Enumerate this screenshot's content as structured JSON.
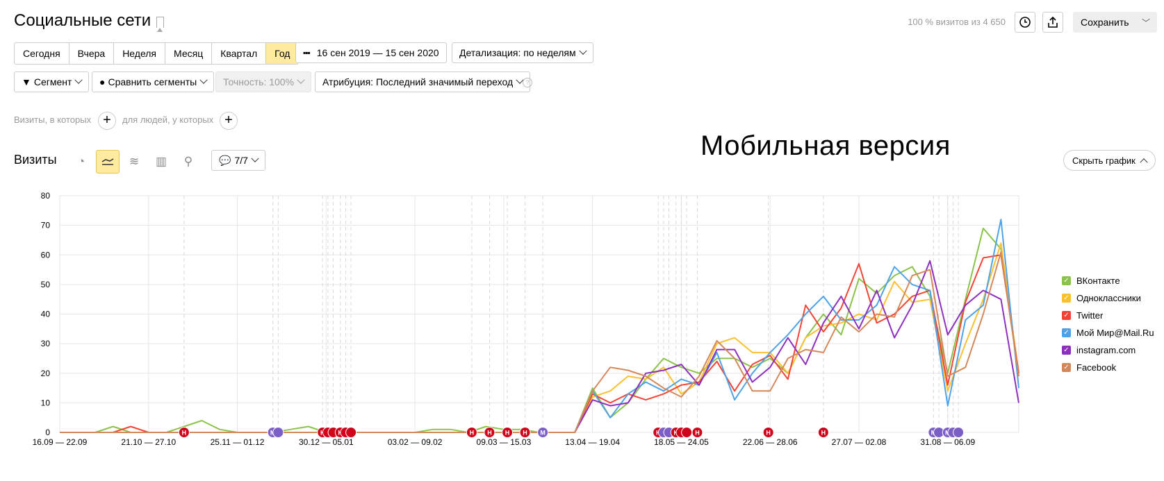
{
  "header": {
    "title": "Социальные сети",
    "visits_info": "100 % визитов из 4 650",
    "save_label": "Сохранить"
  },
  "period": {
    "buttons": [
      "Сегодня",
      "Вчера",
      "Неделя",
      "Месяц",
      "Квартал",
      "Год"
    ],
    "active": "Год",
    "date_range": "16 сен 2019 — 15 сен 2020",
    "detail": "Детализация: по неделям"
  },
  "filters": {
    "segment": "Сегмент",
    "compare": "Сравнить сегменты",
    "accuracy": "Точность: 100%",
    "attribution": "Атрибуция: Последний значимый переход",
    "help": "?"
  },
  "conditions": {
    "visits_label": "Визиты, в которых",
    "people_label": "для людей, у которых"
  },
  "chart_header": {
    "label": "Визиты",
    "notes": "7/7",
    "overlay_text": "Мобильная  версия",
    "hide_label": "Скрыть график"
  },
  "colors": {
    "accent_yellow": "#ffeba0",
    "marker_red": "#d0021b",
    "marker_purple": "#7b5fc7"
  },
  "chart_data": {
    "type": "line",
    "ylim": [
      0,
      80
    ],
    "yticks": [
      0,
      10,
      20,
      30,
      40,
      50,
      60,
      70,
      80
    ],
    "grid": true,
    "legend_position": "right",
    "x_tick_labels": [
      {
        "index": 0,
        "label": "16.09 — 22.09"
      },
      {
        "index": 5,
        "label": "21.10 — 27.10"
      },
      {
        "index": 10,
        "label": "25.11 — 01.12"
      },
      {
        "index": 15,
        "label": "30.12 — 05.01"
      },
      {
        "index": 20,
        "label": "03.02 — 09.02"
      },
      {
        "index": 25,
        "label": "09.03 — 15.03"
      },
      {
        "index": 30,
        "label": "13.04 — 19.04"
      },
      {
        "index": 35,
        "label": "18.05 — 24.05"
      },
      {
        "index": 40,
        "label": "22.06 — 28.06"
      },
      {
        "index": 45,
        "label": "27.07 — 02.08"
      },
      {
        "index": 50,
        "label": "31.08 — 06.09"
      }
    ],
    "series": [
      {
        "name": "ВКонтакте",
        "color": "#8bc34a",
        "values": [
          0,
          0,
          0,
          2,
          0,
          0,
          0,
          2,
          4,
          1,
          0,
          0,
          0,
          1,
          2,
          0,
          0,
          0,
          0,
          0,
          0,
          1,
          1,
          0,
          2,
          1,
          1,
          0,
          0,
          0,
          15,
          5,
          10,
          18,
          25,
          22,
          20,
          25,
          25,
          22,
          25,
          20,
          32,
          40,
          33,
          52,
          47,
          53,
          56,
          46,
          20,
          45,
          69,
          62,
          20
        ]
      },
      {
        "name": "Одноклассники",
        "color": "#fbc02d",
        "values": [
          0,
          0,
          0,
          0,
          0,
          0,
          0,
          0,
          0,
          0,
          0,
          0,
          0,
          0,
          0,
          0,
          0,
          0,
          0,
          0,
          0,
          0,
          0,
          0,
          0,
          0,
          0,
          0,
          0,
          0,
          12,
          14,
          19,
          18,
          22,
          13,
          17,
          30,
          32,
          27,
          27,
          20,
          32,
          36,
          37,
          40,
          38,
          51,
          44,
          45,
          14,
          30,
          45,
          64,
          20
        ]
      },
      {
        "name": "Twitter",
        "color": "#f44336",
        "values": [
          0,
          0,
          0,
          0,
          2,
          0,
          0,
          0,
          0,
          0,
          0,
          0,
          0,
          0,
          0,
          0,
          0,
          0,
          0,
          0,
          0,
          0,
          0,
          0,
          0,
          0,
          0,
          0,
          0,
          0,
          13,
          10,
          13,
          11,
          13,
          16,
          17,
          24,
          14,
          23,
          26,
          18,
          43,
          34,
          42,
          57,
          37,
          40,
          46,
          48,
          16,
          44,
          59,
          60,
          20
        ]
      },
      {
        "name": "Мой Мир@Mail.Ru",
        "color": "#4ea3e8",
        "values": [
          0,
          0,
          0,
          0,
          0,
          0,
          0,
          0,
          0,
          0,
          0,
          0,
          0,
          0,
          0,
          0,
          0,
          0,
          0,
          0,
          0,
          0,
          0,
          0,
          0,
          0,
          0,
          0,
          0,
          0,
          14,
          5,
          13,
          17,
          14,
          18,
          16,
          27,
          11,
          20,
          27,
          33,
          40,
          46,
          38,
          38,
          43,
          56,
          50,
          48,
          9,
          38,
          43,
          72,
          15
        ]
      },
      {
        "name": "instagram.com",
        "color": "#8e2fbf",
        "values": [
          0,
          0,
          0,
          0,
          0,
          0,
          0,
          0,
          0,
          0,
          0,
          0,
          0,
          0,
          0,
          0,
          0,
          0,
          0,
          0,
          0,
          0,
          0,
          0,
          0,
          0,
          0,
          0,
          0,
          0,
          11,
          9,
          10,
          20,
          21,
          23,
          16,
          28,
          28,
          17,
          22,
          32,
          23,
          37,
          46,
          35,
          48,
          32,
          43,
          58,
          33,
          43,
          48,
          45,
          10
        ]
      },
      {
        "name": "Facebook",
        "color": "#d4885a",
        "values": [
          0,
          0,
          0,
          0,
          0,
          0,
          0,
          0,
          0,
          0,
          0,
          0,
          0,
          0,
          0,
          0,
          0,
          0,
          0,
          0,
          0,
          0,
          0,
          0,
          0,
          0,
          0,
          0,
          0,
          0,
          14,
          22,
          21,
          19,
          15,
          12,
          19,
          31,
          25,
          14,
          14,
          25,
          28,
          27,
          39,
          34,
          40,
          39,
          53,
          55,
          19,
          22,
          40,
          61,
          19
        ]
      }
    ],
    "note_markers": [
      {
        "index": 7,
        "icon": "Н",
        "color": "#d0021b"
      },
      {
        "index": 12,
        "icon": "М",
        "color": "#7b5fc7"
      },
      {
        "index": 12.3,
        "icon": "",
        "color": "#7b5fc7"
      },
      {
        "index": 14.8,
        "icon": "Н",
        "color": "#d0021b"
      },
      {
        "index": 15.1,
        "icon": "",
        "color": "#d0021b"
      },
      {
        "index": 15.4,
        "icon": "",
        "color": "#d0021b"
      },
      {
        "index": 15.8,
        "icon": "Н",
        "color": "#d0021b"
      },
      {
        "index": 16.1,
        "icon": "",
        "color": "#d0021b"
      },
      {
        "index": 16.4,
        "icon": "",
        "color": "#d0021b"
      },
      {
        "index": 23.2,
        "icon": "Н",
        "color": "#d0021b"
      },
      {
        "index": 24.2,
        "icon": "Н",
        "color": "#d0021b"
      },
      {
        "index": 25.2,
        "icon": "Н",
        "color": "#d0021b"
      },
      {
        "index": 26.2,
        "icon": "Н",
        "color": "#d0021b"
      },
      {
        "index": 27.2,
        "icon": "М",
        "color": "#7b5fc7"
      },
      {
        "index": 33.7,
        "icon": "Н",
        "color": "#d0021b"
      },
      {
        "index": 34.0,
        "icon": "",
        "color": "#7b5fc7"
      },
      {
        "index": 34.3,
        "icon": "",
        "color": "#7b5fc7"
      },
      {
        "index": 34.7,
        "icon": "Н",
        "color": "#d0021b"
      },
      {
        "index": 35.0,
        "icon": "",
        "color": "#d0021b"
      },
      {
        "index": 35.3,
        "icon": "",
        "color": "#d0021b"
      },
      {
        "index": 35.9,
        "icon": "Н",
        "color": "#d0021b"
      },
      {
        "index": 39.9,
        "icon": "Н",
        "color": "#d0021b"
      },
      {
        "index": 43.0,
        "icon": "Н",
        "color": "#d0021b"
      },
      {
        "index": 49.2,
        "icon": "М",
        "color": "#7b5fc7"
      },
      {
        "index": 49.5,
        "icon": "",
        "color": "#7b5fc7"
      },
      {
        "index": 50.0,
        "icon": "М",
        "color": "#7b5fc7"
      },
      {
        "index": 50.3,
        "icon": "",
        "color": "#7b5fc7"
      },
      {
        "index": 50.6,
        "icon": "",
        "color": "#7b5fc7"
      }
    ]
  }
}
